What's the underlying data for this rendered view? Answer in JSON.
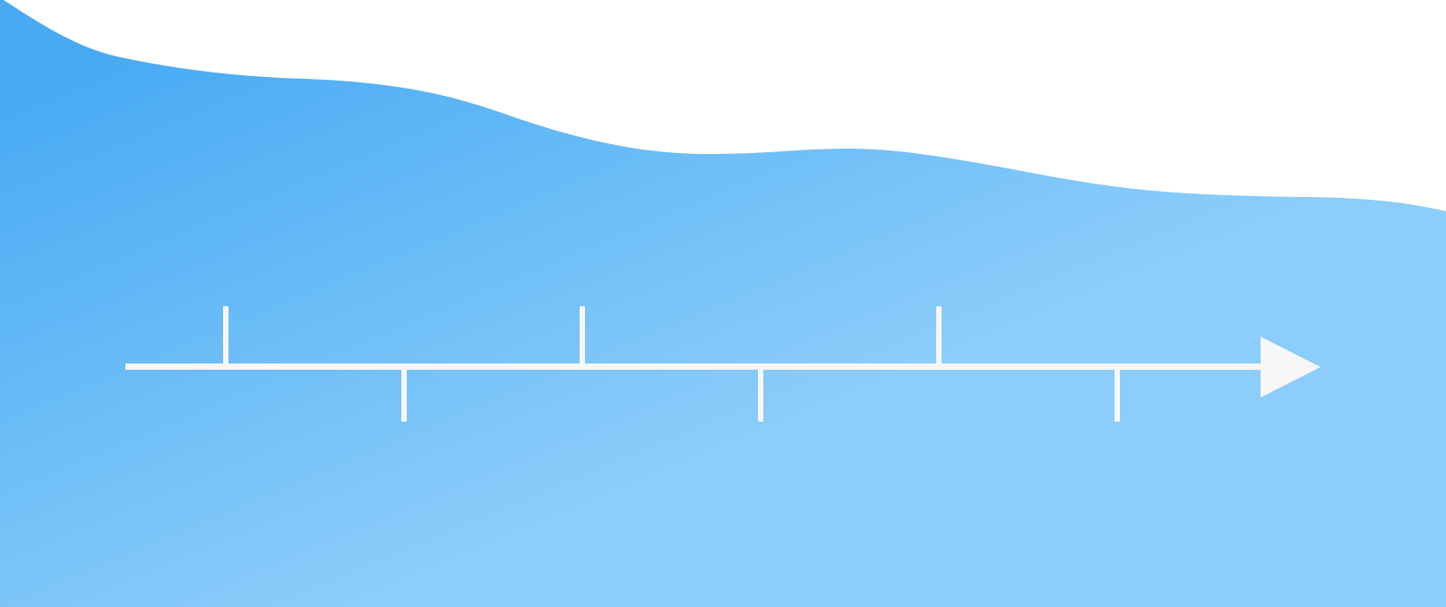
{
  "background": {
    "page_color": "#ffffff",
    "wave_gradient": {
      "start_color": "#47aaf3",
      "end_color": "#8ccdfb"
    }
  },
  "timeline": {
    "line_color": "#f7f7f7",
    "direction": "left-to-right",
    "tick_count": 6,
    "tick_pattern": [
      "up",
      "down",
      "up",
      "down",
      "up",
      "down"
    ]
  }
}
